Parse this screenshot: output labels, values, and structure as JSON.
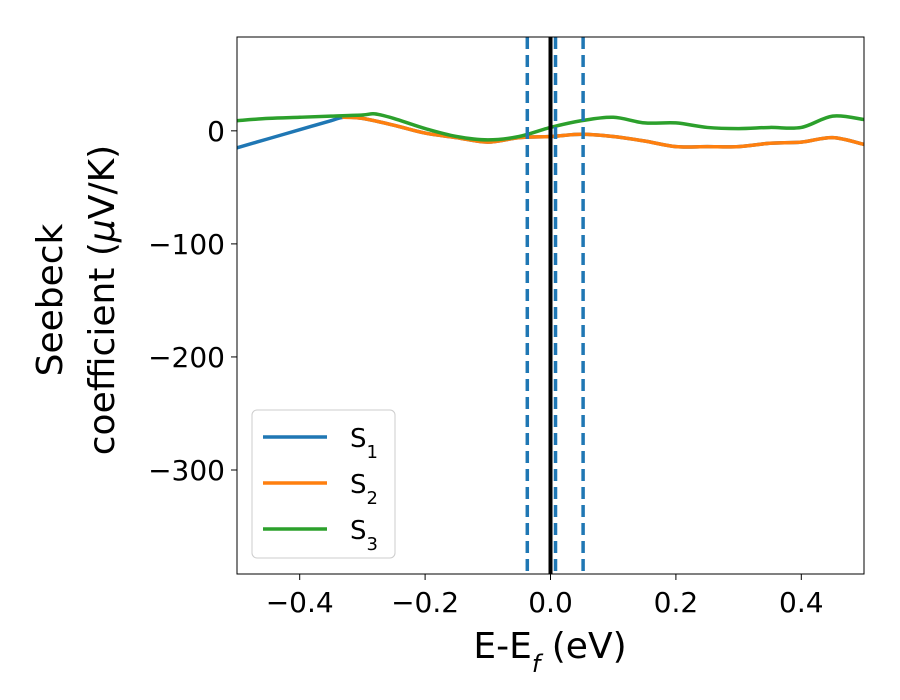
{
  "chart_data": {
    "type": "line",
    "title": "",
    "xlabel_main": "E-E",
    "xlabel_sub": "f",
    "xlabel_unit": " (eV)",
    "ylabel_line1": "Seebeck",
    "ylabel_line2_pre": "coefficient  (",
    "ylabel_mu": "μ",
    "ylabel_line2_post": "V/K)",
    "xlim": [
      -0.5,
      0.5
    ],
    "ylim": [
      -392,
      83
    ],
    "x_ticks": [
      -0.4,
      -0.2,
      0.0,
      0.2,
      0.4
    ],
    "x_tick_labels": [
      "−0.4",
      "−0.2",
      "0.0",
      "0.2",
      "0.4"
    ],
    "y_ticks": [
      0,
      -100,
      -200,
      -300
    ],
    "y_tick_labels": [
      "0",
      "−100",
      "−200",
      "−300"
    ],
    "legend_position": "lower-left",
    "series": [
      {
        "name": "S",
        "sub": "1",
        "color": "#1f77b4",
        "x": [
          -0.5,
          -0.45,
          -0.4,
          -0.35,
          -0.33,
          -0.3,
          -0.25,
          -0.2,
          -0.15,
          -0.1,
          -0.05,
          0.0,
          0.05,
          0.1,
          0.15,
          0.2,
          0.25,
          0.3,
          0.35,
          0.4,
          0.45,
          0.5
        ],
        "y": [
          -15,
          -7,
          1,
          9,
          12,
          11,
          5,
          -2,
          -6,
          -10,
          -6,
          -5,
          -3,
          -5,
          -9,
          -14,
          -14,
          -14,
          -11,
          -10,
          -6,
          -12
        ]
      },
      {
        "name": "S",
        "sub": "2",
        "color": "#ff7f0e",
        "x": [
          -0.33,
          -0.3,
          -0.25,
          -0.2,
          -0.15,
          -0.1,
          -0.05,
          0.0,
          0.05,
          0.1,
          0.15,
          0.2,
          0.25,
          0.3,
          0.35,
          0.4,
          0.45,
          0.5
        ],
        "y": [
          12,
          11,
          5,
          -2,
          -6,
          -10,
          -6,
          -5,
          -3,
          -5,
          -9,
          -14,
          -14,
          -14,
          -11,
          -10,
          -6,
          -12
        ]
      },
      {
        "name": "S",
        "sub": "3",
        "color": "#2ca02c",
        "x": [
          -0.5,
          -0.45,
          -0.4,
          -0.35,
          -0.3,
          -0.28,
          -0.25,
          -0.2,
          -0.15,
          -0.1,
          -0.05,
          0.0,
          0.05,
          0.1,
          0.15,
          0.2,
          0.25,
          0.3,
          0.35,
          0.4,
          0.45,
          0.5
        ],
        "y": [
          9,
          11,
          12,
          13,
          14,
          15,
          11,
          2,
          -5,
          -8,
          -5,
          3,
          9,
          12,
          7,
          7,
          3,
          2,
          3,
          3,
          13,
          10
        ]
      }
    ],
    "vlines": [
      {
        "x": -0.037,
        "style": "dashed",
        "color": "#1f77b4"
      },
      {
        "x": 0.008,
        "style": "dashed",
        "color": "#1f77b4"
      },
      {
        "x": 0.052,
        "style": "dashed",
        "color": "#1f77b4"
      },
      {
        "x": 0.0,
        "style": "solid",
        "color": "#000000"
      }
    ]
  }
}
